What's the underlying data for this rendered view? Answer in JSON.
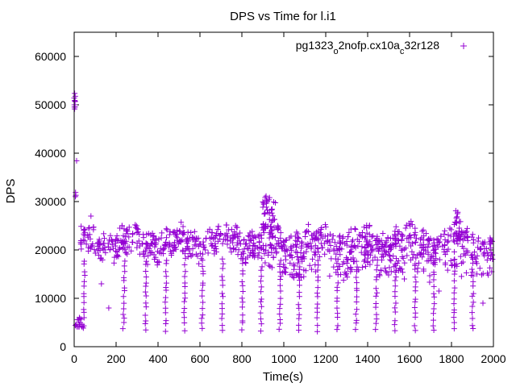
{
  "chart_data": {
    "type": "scatter",
    "title": "DPS vs Time for l.i1",
    "xlabel": "Time(s)",
    "ylabel": "DPS",
    "xlim": [
      0,
      2000
    ],
    "ylim": [
      0,
      65000
    ],
    "xticks": [
      0,
      200,
      400,
      600,
      800,
      1000,
      1200,
      1400,
      1600,
      1800,
      2000
    ],
    "yticks": [
      0,
      10000,
      20000,
      30000,
      40000,
      50000,
      60000
    ],
    "grid": false,
    "legend_position": "top-right",
    "marker": "+",
    "colors": {
      "series": "#9400d3",
      "axes": "#000000"
    },
    "legend": {
      "parts": [
        {
          "text": "pg1323",
          "sub": false
        },
        {
          "text": "o",
          "sub": true
        },
        {
          "text": "2nofp.cx10a",
          "sub": false
        },
        {
          "text": "c",
          "sub": true
        },
        {
          "text": "32r128",
          "sub": false
        }
      ]
    },
    "series": [
      {
        "name": "pg1323_o2nofp.cx10a_c32r128",
        "segments": [
          {
            "x_range": [
              0,
              5
            ],
            "y_range": [
              49000,
              53500
            ],
            "n": 10
          },
          {
            "x_range": [
              5,
              12
            ],
            "y_range": [
              26000,
              40000
            ],
            "n": 4
          },
          {
            "x_range": [
              5,
              40
            ],
            "y_range": [
              4000,
              6000
            ],
            "n": 15
          },
          {
            "x_range": [
              30,
              2000
            ],
            "baseline": 21500,
            "spread": 3500,
            "n": 900
          },
          {
            "x_range": [
              900,
              960
            ],
            "baseline": 26000,
            "spread": 4500,
            "n": 40
          },
          {
            "x_range": [
              1820,
              1850
            ],
            "baseline": 24000,
            "spread": 3000,
            "n": 10
          },
          {
            "x_range": [
              900,
              2000
            ],
            "baseline": 16500,
            "spread": 2500,
            "n": 150
          }
        ],
        "dips_x": [
          45,
          235,
          340,
          435,
          525,
          610,
          705,
          800,
          890,
          980,
          1070,
          1160,
          1255,
          1345,
          1440,
          1530,
          1625,
          1715,
          1810,
          1900
        ],
        "dip_min": 3500,
        "dip_top": 18000,
        "outliers": [
          {
            "x": 165,
            "y": 8000
          },
          {
            "x": 130,
            "y": 13000
          },
          {
            "x": 80,
            "y": 27000
          },
          {
            "x": 350,
            "y": 17000
          },
          {
            "x": 770,
            "y": 25000
          },
          {
            "x": 1830,
            "y": 27800
          },
          {
            "x": 1950,
            "y": 9000
          },
          {
            "x": 1740,
            "y": 11500
          },
          {
            "x": 1575,
            "y": 14000
          }
        ]
      }
    ]
  }
}
